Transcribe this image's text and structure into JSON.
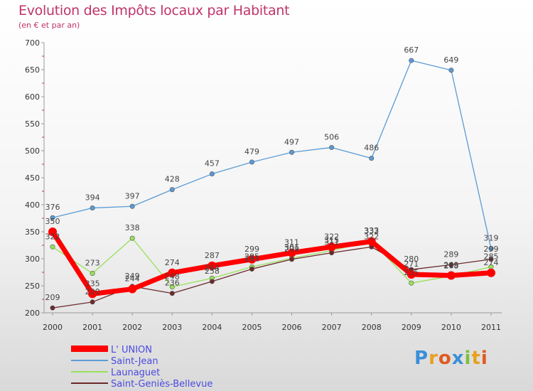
{
  "header": {
    "title": "Evolution des Impôts locaux par Habitant",
    "subtitle": "(en € et par an)"
  },
  "logo": {
    "text": "Proxiti"
  },
  "chart_data": {
    "type": "line",
    "title": "Evolution des Impôts locaux par Habitant",
    "subtitle": "(en € et par an)",
    "xlabel": "",
    "ylabel": "",
    "x": [
      "2000",
      "2001",
      "2002",
      "2003",
      "2004",
      "2005",
      "2006",
      "2007",
      "2008",
      "2009",
      "2010",
      "2011"
    ],
    "ylim": [
      200,
      700
    ],
    "yticks": [
      200,
      250,
      300,
      350,
      400,
      450,
      500,
      550,
      600,
      650,
      700
    ],
    "legend_position": "bottom-left",
    "series": [
      {
        "name": "L' UNION",
        "color": "#ff0000",
        "values": [
          350,
          235,
          244,
          274,
          287,
          299,
          311,
          322,
          332,
          271,
          269,
          274
        ]
      },
      {
        "name": "Saint-Jean",
        "color": "#5b9bd5",
        "values": [
          376,
          394,
          397,
          428,
          457,
          479,
          497,
          506,
          486,
          667,
          649,
          319
        ]
      },
      {
        "name": "Launaguet",
        "color": "#99e05a",
        "values": [
          322,
          273,
          338,
          248,
          264,
          285,
          301,
          315,
          333,
          255,
          268,
          285
        ]
      },
      {
        "name": "Saint-Geniès-Bellevue",
        "color": "#6b2a2a",
        "values": [
          209,
          220,
          249,
          236,
          258,
          281,
          299,
          311,
          322,
          280,
          289,
          299
        ]
      }
    ]
  }
}
